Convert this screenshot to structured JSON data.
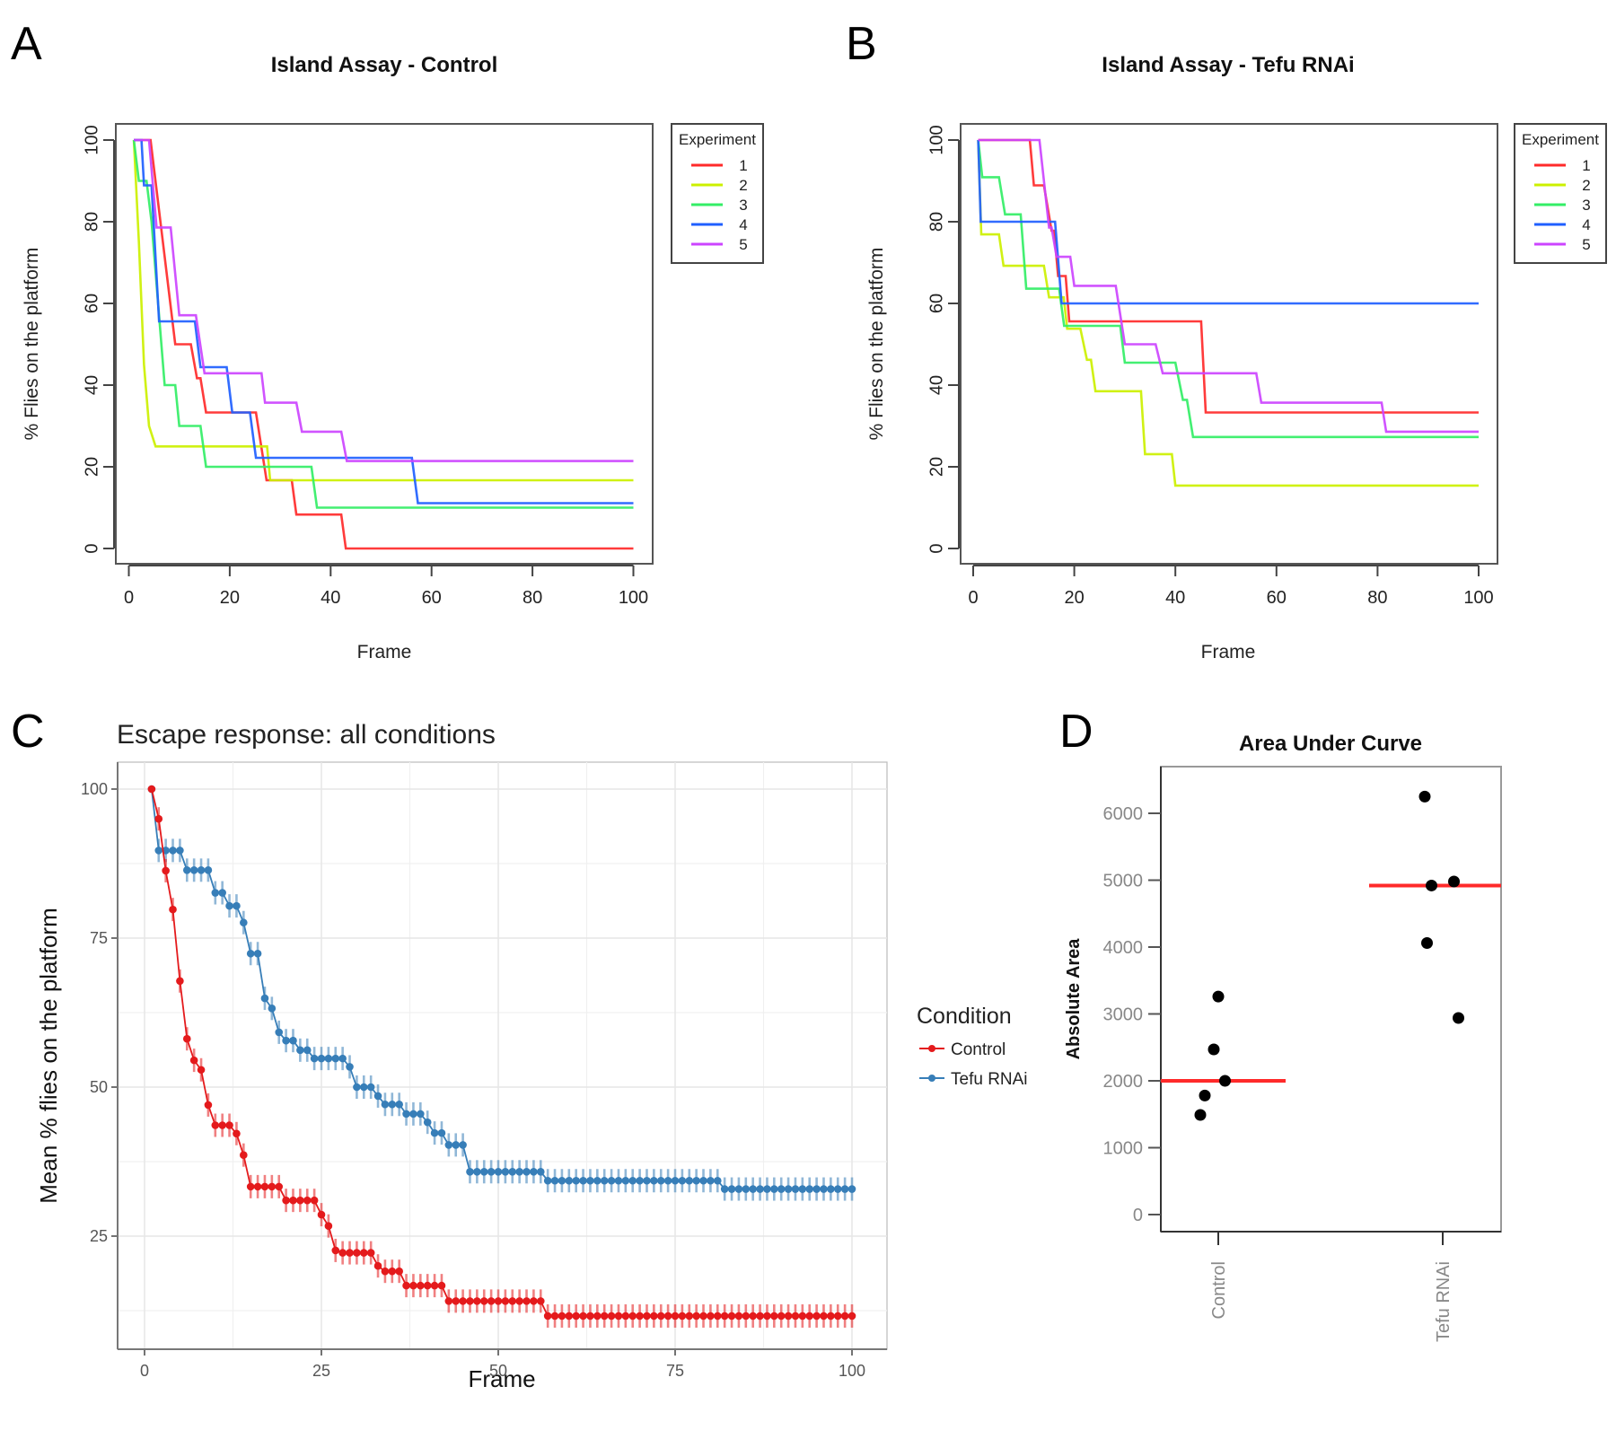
{
  "figure": {
    "panel_labels": [
      "A",
      "B",
      "C",
      "D"
    ]
  },
  "chart_data": [
    {
      "id": "A",
      "type": "line",
      "step": true,
      "title": "Island Assay - Control",
      "xlabel": "Frame",
      "ylabel": "% Flies on the platform",
      "xlim": [
        0,
        100
      ],
      "ylim": [
        0,
        100
      ],
      "xticks": [
        "0",
        "20",
        "40",
        "60",
        "80",
        "100"
      ],
      "yticks": [
        "0",
        "20",
        "40",
        "60",
        "80",
        "100"
      ],
      "grid": false,
      "legend": {
        "title": "Experiment",
        "placement": "right-top"
      },
      "series": [
        {
          "name": "1",
          "color": "#ff2a2a",
          "points": [
            [
              1,
              100
            ],
            [
              4.3,
              100
            ],
            [
              9.2,
              50
            ],
            [
              12.3,
              50
            ],
            [
              13.5,
              41.7
            ],
            [
              14.2,
              41.7
            ],
            [
              15.3,
              33.3
            ],
            [
              25.2,
              33.3
            ],
            [
              27.3,
              16.7
            ],
            [
              32.3,
              16.7
            ],
            [
              33.2,
              8.3
            ],
            [
              42.1,
              8.3
            ],
            [
              43,
              0
            ],
            [
              100,
              0
            ]
          ]
        },
        {
          "name": "2",
          "color": "#ccf000",
          "points": [
            [
              1,
              100
            ],
            [
              2,
              75
            ],
            [
              3,
              45
            ],
            [
              4,
              30
            ],
            [
              5.3,
              25
            ],
            [
              27.4,
              25
            ],
            [
              28,
              16.7
            ],
            [
              100,
              16.7
            ]
          ]
        },
        {
          "name": "3",
          "color": "#33ee66",
          "points": [
            [
              1,
              100
            ],
            [
              2,
              90
            ],
            [
              3.5,
              90
            ],
            [
              4.5,
              80
            ],
            [
              7.1,
              40
            ],
            [
              9.2,
              40
            ],
            [
              10,
              30
            ],
            [
              14.2,
              30
            ],
            [
              15.3,
              20
            ],
            [
              36.2,
              20
            ],
            [
              37.3,
              10
            ],
            [
              100,
              10
            ]
          ]
        },
        {
          "name": "4",
          "color": "#1f5fff",
          "points": [
            [
              1,
              100
            ],
            [
              2.5,
              100
            ],
            [
              3,
              88.9
            ],
            [
              4.5,
              88.9
            ],
            [
              6,
              55.6
            ],
            [
              13.1,
              55.6
            ],
            [
              14.2,
              44.4
            ],
            [
              19.4,
              44.4
            ],
            [
              20.5,
              33.3
            ],
            [
              24,
              33.3
            ],
            [
              25.2,
              22.2
            ],
            [
              56.1,
              22.2
            ],
            [
              57.3,
              11.1
            ],
            [
              100,
              11.1
            ]
          ]
        },
        {
          "name": "5",
          "color": "#cc44ff",
          "points": [
            [
              1,
              100
            ],
            [
              4,
              100
            ],
            [
              5.5,
              78.6
            ],
            [
              8.3,
              78.6
            ],
            [
              10,
              57.1
            ],
            [
              13.3,
              57.1
            ],
            [
              15,
              42.9
            ],
            [
              26.3,
              42.9
            ],
            [
              27,
              35.7
            ],
            [
              33.2,
              35.7
            ],
            [
              34.3,
              28.6
            ],
            [
              42.1,
              28.6
            ],
            [
              43.2,
              21.4
            ],
            [
              100,
              21.4
            ]
          ]
        }
      ]
    },
    {
      "id": "B",
      "type": "line",
      "step": true,
      "title": "Island Assay - Tefu RNAi",
      "xlabel": "Frame",
      "ylabel": "% Flies on the platform",
      "xlim": [
        0,
        100
      ],
      "ylim": [
        0,
        100
      ],
      "xticks": [
        "0",
        "20",
        "40",
        "60",
        "80",
        "100"
      ],
      "yticks": [
        "0",
        "20",
        "40",
        "60",
        "80",
        "100"
      ],
      "grid": false,
      "legend": {
        "title": "Experiment",
        "placement": "right-top"
      },
      "series": [
        {
          "name": "1",
          "color": "#ff2a2a",
          "points": [
            [
              1,
              100
            ],
            [
              11.2,
              100
            ],
            [
              12,
              88.9
            ],
            [
              14,
              88.9
            ],
            [
              15.5,
              77.8
            ],
            [
              16,
              77.8
            ],
            [
              16.8,
              66.7
            ],
            [
              18.3,
              66.7
            ],
            [
              19,
              55.6
            ],
            [
              45.1,
              55.6
            ],
            [
              46,
              33.3
            ],
            [
              100,
              33.3
            ]
          ]
        },
        {
          "name": "2",
          "color": "#ccf000",
          "points": [
            [
              1,
              100
            ],
            [
              1.6,
              76.9
            ],
            [
              5.1,
              76.9
            ],
            [
              6,
              69.2
            ],
            [
              14,
              69.2
            ],
            [
              15,
              61.5
            ],
            [
              17.9,
              61.5
            ],
            [
              18.6,
              53.8
            ],
            [
              21.2,
              53.8
            ],
            [
              22.5,
              46.2
            ],
            [
              23.3,
              46.2
            ],
            [
              24.2,
              38.5
            ],
            [
              33.2,
              38.5
            ],
            [
              34,
              23.1
            ],
            [
              39.3,
              23.1
            ],
            [
              40,
              15.4
            ],
            [
              100,
              15.4
            ]
          ]
        },
        {
          "name": "3",
          "color": "#33ee66",
          "points": [
            [
              1,
              100
            ],
            [
              1.8,
              90.9
            ],
            [
              5.1,
              90.9
            ],
            [
              6.3,
              81.8
            ],
            [
              9.4,
              81.8
            ],
            [
              10.5,
              63.6
            ],
            [
              17,
              63.6
            ],
            [
              18,
              54.5
            ],
            [
              29.1,
              54.5
            ],
            [
              30,
              45.5
            ],
            [
              40,
              45.5
            ],
            [
              41.5,
              36.4
            ],
            [
              42.3,
              36.4
            ],
            [
              43.5,
              27.3
            ],
            [
              100,
              27.3
            ]
          ]
        },
        {
          "name": "4",
          "color": "#1f5fff",
          "points": [
            [
              1,
              100
            ],
            [
              1.5,
              80
            ],
            [
              16.2,
              80
            ],
            [
              17.5,
              60
            ],
            [
              100,
              60
            ]
          ]
        },
        {
          "name": "5",
          "color": "#cc44ff",
          "points": [
            [
              1,
              100
            ],
            [
              13.1,
              100
            ],
            [
              15,
              78.6
            ],
            [
              15.5,
              78.6
            ],
            [
              16.5,
              71.4
            ],
            [
              19.2,
              71.4
            ],
            [
              20,
              64.3
            ],
            [
              28.2,
              64.3
            ],
            [
              30,
              50
            ],
            [
              36.1,
              50
            ],
            [
              37.5,
              42.9
            ],
            [
              56,
              42.9
            ],
            [
              57,
              35.7
            ],
            [
              80.8,
              35.7
            ],
            [
              81.7,
              28.6
            ],
            [
              100,
              28.6
            ]
          ]
        }
      ]
    },
    {
      "id": "C",
      "type": "line",
      "title": "Escape response: all conditions",
      "xlabel": "Frame",
      "ylabel": "Mean % flies on the platform",
      "xlim": [
        -4,
        104
      ],
      "ylim": [
        6,
        104
      ],
      "xticks": [
        "0",
        "25",
        "50",
        "75",
        "100"
      ],
      "yticks": [
        "25",
        "50",
        "75",
        "100"
      ],
      "grid": true,
      "error_bars": true,
      "legend": {
        "title": "Condition",
        "placement": "right"
      },
      "series": [
        {
          "name": "Control",
          "color": "#e41a1c",
          "breaks": [
            [
              1,
              100
            ],
            [
              2,
              95
            ],
            [
              3,
              86.3
            ],
            [
              4,
              79.8
            ],
            [
              5,
              67.8
            ],
            [
              6,
              58.1
            ],
            [
              7,
              54.5
            ],
            [
              8,
              52.9
            ],
            [
              9,
              47
            ],
            [
              10,
              43.6
            ],
            [
              13,
              42.2
            ],
            [
              14,
              38.6
            ],
            [
              15,
              33.3
            ],
            [
              20,
              31
            ],
            [
              25,
              28.6
            ],
            [
              26,
              26.7
            ],
            [
              27,
              22.6
            ],
            [
              28,
              22.2
            ],
            [
              33,
              20
            ],
            [
              34,
              19.1
            ],
            [
              37,
              16.7
            ],
            [
              43,
              14.1
            ],
            [
              57,
              11.6
            ]
          ]
        },
        {
          "name": "Tefu RNAi",
          "color": "#377eb8",
          "breaks": [
            [
              1,
              100
            ],
            [
              2,
              89.7
            ],
            [
              6,
              86.4
            ],
            [
              10,
              82.6
            ],
            [
              12,
              80.4
            ],
            [
              14,
              77.6
            ],
            [
              15,
              72.4
            ],
            [
              17,
              64.9
            ],
            [
              18,
              63.2
            ],
            [
              19,
              59.2
            ],
            [
              20,
              57.8
            ],
            [
              22,
              56.2
            ],
            [
              24,
              54.8
            ],
            [
              29,
              53.4
            ],
            [
              30,
              50
            ],
            [
              33,
              48.5
            ],
            [
              34,
              47.1
            ],
            [
              37,
              45.5
            ],
            [
              40,
              44.1
            ],
            [
              41,
              42.3
            ],
            [
              43,
              40.3
            ],
            [
              46,
              35.8
            ],
            [
              57,
              34.3
            ],
            [
              82,
              32.9
            ]
          ]
        }
      ],
      "frames": [
        1,
        100
      ]
    },
    {
      "id": "D",
      "type": "scatter",
      "title": "Area Under Curve",
      "xlabel": "",
      "ylabel": "Absolute Area",
      "categories": [
        "Control",
        "Tefu RNAi"
      ],
      "ylim": [
        -300,
        6700
      ],
      "yticks": [
        "0",
        "1000",
        "2000",
        "3000",
        "4000",
        "5000",
        "6000"
      ],
      "grid": false,
      "series": [
        {
          "name": "Control",
          "values": [
            3260,
            2470,
            2000,
            1780,
            1490
          ],
          "jitter": [
            0.0,
            -0.02,
            0.03,
            -0.06,
            -0.08
          ],
          "median": 2000
        },
        {
          "name": "Tefu RNAi",
          "values": [
            6250,
            4920,
            4980,
            4060,
            2940
          ],
          "jitter": [
            -0.08,
            -0.05,
            0.05,
            -0.07,
            0.07
          ],
          "median": 4920
        }
      ],
      "median_color": "#ff2a2a"
    }
  ]
}
